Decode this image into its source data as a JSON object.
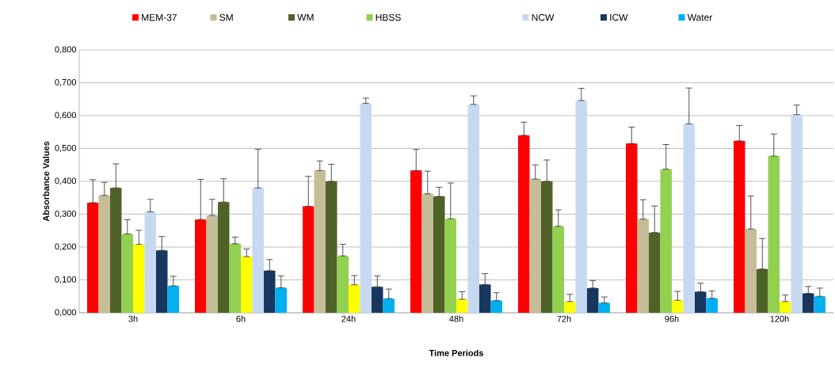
{
  "chart_data": {
    "type": "bar",
    "xlabel": "Time Periods",
    "ylabel": "Absorbance Values",
    "categories": [
      "3h",
      "6h",
      "24h",
      "48h",
      "72h",
      "96h",
      "120h"
    ],
    "ylim": [
      0,
      0.8
    ],
    "yticks": [
      {
        "value": 0,
        "label": "0,000"
      },
      {
        "value": 0.1,
        "label": "0,100"
      },
      {
        "value": 0.2,
        "label": "0,200"
      },
      {
        "value": 0.3,
        "label": "0,300"
      },
      {
        "value": 0.4,
        "label": "0,400"
      },
      {
        "value": 0.5,
        "label": "0,500"
      },
      {
        "value": 0.6,
        "label": "0,600"
      },
      {
        "value": 0.7,
        "label": "0,700"
      },
      {
        "value": 0.8,
        "label": "0,800"
      }
    ],
    "grid": "y",
    "legend": "top",
    "series": [
      {
        "name": "MEM-37",
        "color": "#ff0000",
        "values": [
          0.335,
          0.284,
          0.324,
          0.433,
          0.54,
          0.515,
          0.523
        ],
        "errors": [
          [
            0.335,
            0.405
          ],
          [
            0.284,
            0.406
          ],
          [
            0.324,
            0.415
          ],
          [
            0.433,
            0.497
          ],
          [
            0.54,
            0.58
          ],
          [
            0.515,
            0.565
          ],
          [
            0.523,
            0.57
          ]
        ]
      },
      {
        "name": "SM",
        "color": "#c4bd97",
        "values": [
          0.357,
          0.296,
          0.433,
          0.362,
          0.407,
          0.285,
          0.255
        ],
        "errors": [
          [
            0.357,
            0.397
          ],
          [
            0.296,
            0.345
          ],
          [
            0.433,
            0.462
          ],
          [
            0.362,
            0.431
          ],
          [
            0.407,
            0.45
          ],
          [
            0.285,
            0.344
          ],
          [
            0.255,
            0.355
          ]
        ]
      },
      {
        "name": "WM",
        "color": "#4f6228",
        "values": [
          0.38,
          0.337,
          0.4,
          0.354,
          0.4,
          0.244,
          0.133
        ],
        "errors": [
          [
            0.38,
            0.453
          ],
          [
            0.337,
            0.408
          ],
          [
            0.4,
            0.452
          ],
          [
            0.354,
            0.382
          ],
          [
            0.4,
            0.465
          ],
          [
            0.244,
            0.325
          ],
          [
            0.133,
            0.226
          ]
        ]
      },
      {
        "name": "HBSS",
        "color": "#92d050",
        "values": [
          0.24,
          0.21,
          0.173,
          0.286,
          0.263,
          0.437,
          0.477
        ],
        "errors": [
          [
            0.24,
            0.283
          ],
          [
            0.21,
            0.23
          ],
          [
            0.173,
            0.208
          ],
          [
            0.286,
            0.395
          ],
          [
            0.263,
            0.313
          ],
          [
            0.437,
            0.512
          ],
          [
            0.477,
            0.544
          ]
        ]
      },
      {
        "color": "#ffff00",
        "values": [
          0.208,
          0.171,
          0.085,
          0.041,
          0.034,
          0.038,
          0.034
        ],
        "errors": [
          [
            0.208,
            0.251
          ],
          [
            0.171,
            0.194
          ],
          [
            0.085,
            0.113
          ],
          [
            0.041,
            0.064
          ],
          [
            0.034,
            0.056
          ],
          [
            0.038,
            0.065
          ],
          [
            0.034,
            0.054
          ]
        ]
      },
      {
        "name": "NCW",
        "color": "#c6d9f1",
        "values": [
          0.307,
          0.38,
          0.637,
          0.634,
          0.646,
          0.575,
          0.603
        ],
        "errors": [
          [
            0.307,
            0.345
          ],
          [
            0.38,
            0.498
          ],
          [
            0.637,
            0.653
          ],
          [
            0.634,
            0.66
          ],
          [
            0.646,
            0.683
          ],
          [
            0.575,
            0.684
          ],
          [
            0.603,
            0.632
          ]
        ]
      },
      {
        "name": "ICW",
        "color": "#17375e",
        "values": [
          0.19,
          0.128,
          0.079,
          0.086,
          0.075,
          0.064,
          0.059
        ],
        "errors": [
          [
            0.19,
            0.232
          ],
          [
            0.128,
            0.162
          ],
          [
            0.079,
            0.112
          ],
          [
            0.086,
            0.119
          ],
          [
            0.075,
            0.098
          ],
          [
            0.064,
            0.09
          ],
          [
            0.059,
            0.08
          ]
        ]
      },
      {
        "name": "Water",
        "color": "#00b0f0",
        "values": [
          0.082,
          0.076,
          0.043,
          0.037,
          0.03,
          0.044,
          0.05
        ],
        "errors": [
          [
            0.082,
            0.111
          ],
          [
            0.076,
            0.112
          ],
          [
            0.043,
            0.072
          ],
          [
            0.037,
            0.061
          ],
          [
            0.03,
            0.048
          ],
          [
            0.044,
            0.066
          ],
          [
            0.05,
            0.075
          ]
        ]
      }
    ]
  }
}
